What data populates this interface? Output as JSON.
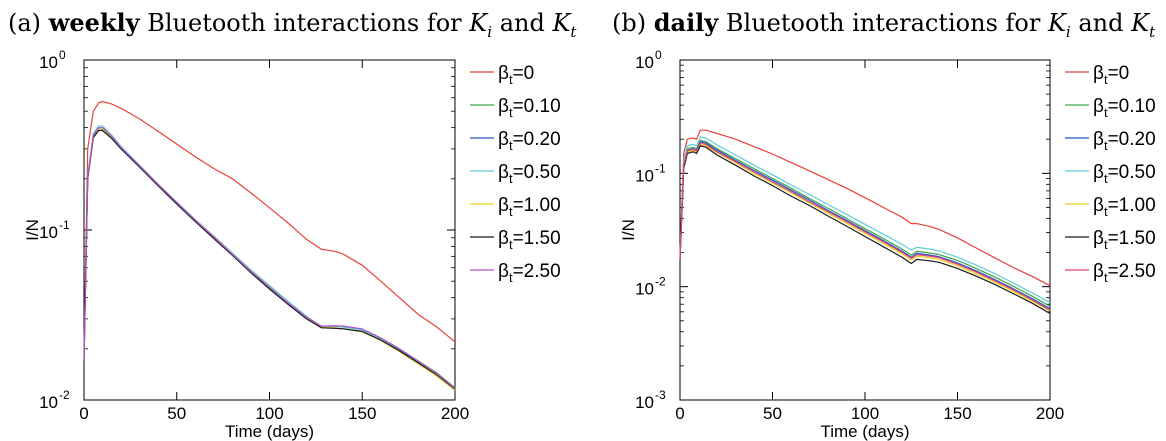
{
  "panels": [
    {
      "label": "(a)",
      "title_bold": "weekly",
      "title_rest": "Bluetooth interactions for",
      "title_and": "and"
    },
    {
      "label": "(b)",
      "title_bold": "daily",
      "title_rest": "Bluetooth interactions for",
      "title_and": "and"
    }
  ],
  "title_math": {
    "k1_base": "K",
    "k1_sub": "i",
    "k2_base": "K",
    "k2_sub": "t"
  },
  "chart_data": [
    {
      "type": "line",
      "title": "(a) weekly Bluetooth interactions for K_i and K_t",
      "xlabel": "Time (days)",
      "ylabel": "I/N",
      "xlim": [
        0,
        200
      ],
      "ylim": [
        0.01,
        1
      ],
      "yscale": "log",
      "xticks": [
        0,
        50,
        100,
        150,
        200
      ],
      "yticks": [
        {
          "base": "10",
          "exp": "0",
          "value": 1
        },
        {
          "base": "10",
          "exp": "-1",
          "value": 0.1
        },
        {
          "base": "10",
          "exp": "-2",
          "value": 0.01
        }
      ],
      "grid": false,
      "legend_position": "right",
      "series": [
        {
          "name": "β_t=0",
          "legend_base": "β",
          "legend_sub": "t",
          "legend_val": "=0",
          "color": "#e8413a",
          "x": [
            0,
            2,
            5,
            8,
            10,
            15,
            20,
            30,
            40,
            50,
            60,
            70,
            80,
            90,
            100,
            110,
            120,
            128,
            135,
            140,
            150,
            160,
            170,
            180,
            190,
            200
          ],
          "y": [
            0.018,
            0.3,
            0.5,
            0.56,
            0.57,
            0.55,
            0.52,
            0.45,
            0.38,
            0.32,
            0.27,
            0.23,
            0.2,
            0.165,
            0.135,
            0.11,
            0.088,
            0.077,
            0.075,
            0.072,
            0.062,
            0.05,
            0.04,
            0.032,
            0.027,
            0.022
          ]
        },
        {
          "name": "β_t=0.10",
          "legend_base": "β",
          "legend_sub": "t",
          "legend_val": "=0.10",
          "color": "#3aa64a",
          "x": [
            0,
            2,
            5,
            8,
            10,
            15,
            20,
            30,
            40,
            50,
            60,
            70,
            80,
            90,
            100,
            110,
            120,
            128,
            135,
            140,
            150,
            160,
            170,
            180,
            190,
            200
          ],
          "y": [
            0.017,
            0.2,
            0.36,
            0.4,
            0.4,
            0.36,
            0.31,
            0.24,
            0.185,
            0.145,
            0.115,
            0.092,
            0.073,
            0.058,
            0.047,
            0.038,
            0.031,
            0.027,
            0.027,
            0.027,
            0.026,
            0.023,
            0.02,
            0.017,
            0.0145,
            0.0118
          ]
        },
        {
          "name": "β_t=0.20",
          "legend_base": "β",
          "legend_sub": "t",
          "legend_val": "=0.20",
          "color": "#2a4fc8",
          "x": [
            0,
            2,
            5,
            8,
            10,
            15,
            20,
            30,
            40,
            50,
            60,
            70,
            80,
            90,
            100,
            110,
            120,
            128,
            135,
            140,
            150,
            160,
            170,
            180,
            190,
            200
          ],
          "y": [
            0.017,
            0.2,
            0.35,
            0.39,
            0.39,
            0.35,
            0.3,
            0.235,
            0.183,
            0.143,
            0.113,
            0.09,
            0.072,
            0.057,
            0.046,
            0.037,
            0.0305,
            0.027,
            0.0272,
            0.027,
            0.026,
            0.023,
            0.0198,
            0.0168,
            0.0143,
            0.0117
          ]
        },
        {
          "name": "β_t=0.50",
          "legend_base": "β",
          "legend_sub": "t",
          "legend_val": "=0.50",
          "color": "#5ccfd6",
          "x": [
            0,
            2,
            5,
            8,
            10,
            15,
            20,
            30,
            40,
            50,
            60,
            70,
            80,
            90,
            100,
            110,
            120,
            128,
            135,
            140,
            150,
            160,
            170,
            180,
            190,
            200
          ],
          "y": [
            0.017,
            0.21,
            0.37,
            0.41,
            0.41,
            0.36,
            0.31,
            0.24,
            0.186,
            0.146,
            0.115,
            0.092,
            0.073,
            0.058,
            0.047,
            0.038,
            0.031,
            0.0272,
            0.0271,
            0.0268,
            0.0258,
            0.0228,
            0.0196,
            0.0166,
            0.0141,
            0.0116
          ]
        },
        {
          "name": "β_t=1.00",
          "legend_base": "β",
          "legend_sub": "t",
          "legend_val": "=1.00",
          "color": "#e6d21c",
          "x": [
            0,
            2,
            5,
            8,
            10,
            15,
            20,
            30,
            40,
            50,
            60,
            70,
            80,
            90,
            100,
            110,
            120,
            128,
            135,
            140,
            150,
            160,
            170,
            180,
            190,
            200
          ],
          "y": [
            0.017,
            0.2,
            0.35,
            0.39,
            0.39,
            0.35,
            0.3,
            0.236,
            0.184,
            0.144,
            0.114,
            0.091,
            0.072,
            0.057,
            0.046,
            0.037,
            0.0303,
            0.0268,
            0.0265,
            0.0262,
            0.0252,
            0.0224,
            0.0193,
            0.0164,
            0.0139,
            0.0114
          ]
        },
        {
          "name": "β_t=1.50",
          "legend_base": "β",
          "legend_sub": "t",
          "legend_val": "=1.50",
          "color": "#1a1a1a",
          "x": [
            0,
            2,
            5,
            8,
            10,
            15,
            20,
            30,
            40,
            50,
            60,
            70,
            80,
            90,
            100,
            110,
            120,
            128,
            135,
            140,
            150,
            160,
            170,
            180,
            190,
            200
          ],
          "y": [
            0.017,
            0.2,
            0.35,
            0.385,
            0.385,
            0.345,
            0.3,
            0.234,
            0.182,
            0.142,
            0.112,
            0.089,
            0.071,
            0.056,
            0.045,
            0.0365,
            0.03,
            0.0266,
            0.0264,
            0.0262,
            0.0253,
            0.0225,
            0.0195,
            0.0166,
            0.0141,
            0.0116
          ]
        },
        {
          "name": "β_t=2.50",
          "legend_base": "β",
          "legend_sub": "t",
          "legend_val": "=2.50",
          "color": "#b64ec9",
          "x": [
            0,
            2,
            5,
            8,
            10,
            15,
            20,
            30,
            40,
            50,
            60,
            70,
            80,
            90,
            100,
            110,
            120,
            128,
            135,
            140,
            150,
            160,
            170,
            180,
            190,
            200
          ],
          "y": [
            0.017,
            0.2,
            0.36,
            0.4,
            0.4,
            0.355,
            0.305,
            0.238,
            0.185,
            0.145,
            0.114,
            0.091,
            0.072,
            0.057,
            0.046,
            0.0372,
            0.0306,
            0.0272,
            0.0273,
            0.0272,
            0.0262,
            0.0232,
            0.02,
            0.0169,
            0.0143,
            0.0117
          ]
        }
      ]
    },
    {
      "type": "line",
      "title": "(b) daily Bluetooth interactions for K_i and K_t",
      "xlabel": "Time (days)",
      "ylabel": "I/N",
      "xlim": [
        0,
        200
      ],
      "ylim": [
        0.001,
        1
      ],
      "yscale": "log",
      "xticks": [
        0,
        50,
        100,
        150,
        200
      ],
      "yticks": [
        {
          "base": "10",
          "exp": "0",
          "value": 1
        },
        {
          "base": "10",
          "exp": "-1",
          "value": 0.1
        },
        {
          "base": "10",
          "exp": "-2",
          "value": 0.01
        },
        {
          "base": "10",
          "exp": "-3",
          "value": 0.001
        }
      ],
      "grid": false,
      "legend_position": "right",
      "series": [
        {
          "name": "β_t=0",
          "legend_base": "β",
          "legend_sub": "t",
          "legend_val": "=0",
          "color": "#e8413a",
          "x": [
            0,
            2,
            4,
            7,
            9,
            11,
            14,
            20,
            30,
            40,
            50,
            60,
            70,
            80,
            90,
            100,
            110,
            120,
            125,
            128,
            135,
            140,
            150,
            160,
            170,
            180,
            190,
            200
          ],
          "y": [
            0.018,
            0.15,
            0.2,
            0.205,
            0.2,
            0.24,
            0.24,
            0.225,
            0.2,
            0.172,
            0.148,
            0.125,
            0.105,
            0.088,
            0.074,
            0.061,
            0.05,
            0.041,
            0.036,
            0.036,
            0.034,
            0.032,
            0.027,
            0.022,
            0.018,
            0.0148,
            0.0124,
            0.0102
          ]
        },
        {
          "name": "β_t=0.10",
          "legend_base": "β",
          "legend_sub": "t",
          "legend_val": "=0.10",
          "color": "#3aa64a",
          "x": [
            0,
            2,
            4,
            7,
            9,
            11,
            14,
            20,
            30,
            40,
            50,
            60,
            70,
            80,
            90,
            100,
            110,
            120,
            125,
            128,
            135,
            140,
            150,
            160,
            170,
            180,
            190,
            200
          ],
          "y": [
            0.017,
            0.12,
            0.165,
            0.17,
            0.165,
            0.195,
            0.19,
            0.165,
            0.135,
            0.11,
            0.09,
            0.074,
            0.06,
            0.049,
            0.04,
            0.0325,
            0.0265,
            0.0215,
            0.019,
            0.0205,
            0.0198,
            0.0192,
            0.017,
            0.0145,
            0.0122,
            0.0101,
            0.0083,
            0.0067
          ]
        },
        {
          "name": "β_t=0.20",
          "legend_base": "β",
          "legend_sub": "t",
          "legend_val": "=0.20",
          "color": "#2a4fc8",
          "x": [
            0,
            2,
            4,
            7,
            9,
            11,
            14,
            20,
            30,
            40,
            50,
            60,
            70,
            80,
            90,
            100,
            110,
            120,
            125,
            128,
            135,
            140,
            150,
            160,
            170,
            180,
            190,
            200
          ],
          "y": [
            0.017,
            0.12,
            0.16,
            0.165,
            0.16,
            0.19,
            0.185,
            0.16,
            0.13,
            0.106,
            0.087,
            0.071,
            0.058,
            0.047,
            0.0385,
            0.0312,
            0.0254,
            0.0206,
            0.0182,
            0.0197,
            0.019,
            0.0184,
            0.0162,
            0.0138,
            0.0116,
            0.0096,
            0.0079,
            0.0064
          ]
        },
        {
          "name": "β_t=0.50",
          "legend_base": "β",
          "legend_sub": "t",
          "legend_val": "=0.50",
          "color": "#5ccfd6",
          "x": [
            0,
            2,
            4,
            7,
            9,
            11,
            14,
            20,
            30,
            40,
            50,
            60,
            70,
            80,
            90,
            100,
            110,
            120,
            125,
            128,
            135,
            140,
            150,
            160,
            170,
            180,
            190,
            200
          ],
          "y": [
            0.017,
            0.13,
            0.175,
            0.18,
            0.175,
            0.21,
            0.205,
            0.178,
            0.145,
            0.118,
            0.097,
            0.079,
            0.065,
            0.053,
            0.0435,
            0.0355,
            0.029,
            0.0236,
            0.021,
            0.0222,
            0.0215,
            0.0207,
            0.0182,
            0.0155,
            0.0131,
            0.0108,
            0.0089,
            0.0072
          ]
        },
        {
          "name": "β_t=1.00",
          "legend_base": "β",
          "legend_sub": "t",
          "legend_val": "=1.00",
          "color": "#e6d21c",
          "x": [
            0,
            2,
            4,
            7,
            9,
            11,
            14,
            20,
            30,
            40,
            50,
            60,
            70,
            80,
            90,
            100,
            110,
            120,
            125,
            128,
            135,
            140,
            150,
            160,
            170,
            180,
            190,
            200
          ],
          "y": [
            0.017,
            0.115,
            0.155,
            0.16,
            0.155,
            0.18,
            0.175,
            0.152,
            0.124,
            0.1,
            0.082,
            0.067,
            0.055,
            0.0445,
            0.0363,
            0.0295,
            0.024,
            0.0195,
            0.0172,
            0.0186,
            0.018,
            0.0174,
            0.0153,
            0.013,
            0.011,
            0.0091,
            0.0075,
            0.0061
          ]
        },
        {
          "name": "β_t=1.50",
          "legend_base": "β",
          "legend_sub": "t",
          "legend_val": "=1.50",
          "color": "#1a1a1a",
          "x": [
            0,
            2,
            4,
            7,
            9,
            11,
            14,
            20,
            30,
            40,
            50,
            60,
            70,
            80,
            90,
            100,
            110,
            120,
            125,
            128,
            135,
            140,
            150,
            160,
            170,
            180,
            190,
            200
          ],
          "y": [
            0.017,
            0.11,
            0.15,
            0.155,
            0.15,
            0.175,
            0.17,
            0.145,
            0.118,
            0.095,
            0.078,
            0.063,
            0.052,
            0.042,
            0.0342,
            0.0277,
            0.0225,
            0.0182,
            0.016,
            0.0174,
            0.0169,
            0.0164,
            0.0145,
            0.0124,
            0.0105,
            0.0087,
            0.0072,
            0.0058
          ]
        },
        {
          "name": "β_t=2.50",
          "legend_base": "β",
          "legend_sub": "t",
          "legend_val": "=2.50",
          "color": "#e0457b",
          "x": [
            0,
            2,
            4,
            7,
            9,
            11,
            14,
            20,
            30,
            40,
            50,
            60,
            70,
            80,
            90,
            100,
            110,
            120,
            125,
            128,
            135,
            140,
            150,
            160,
            170,
            180,
            190,
            200
          ],
          "y": [
            0.017,
            0.118,
            0.158,
            0.163,
            0.158,
            0.185,
            0.18,
            0.155,
            0.127,
            0.103,
            0.084,
            0.069,
            0.056,
            0.046,
            0.0375,
            0.0305,
            0.0248,
            0.0201,
            0.0178,
            0.0192,
            0.0186,
            0.018,
            0.0158,
            0.0135,
            0.0113,
            0.0094,
            0.0077,
            0.0062
          ]
        }
      ]
    }
  ]
}
